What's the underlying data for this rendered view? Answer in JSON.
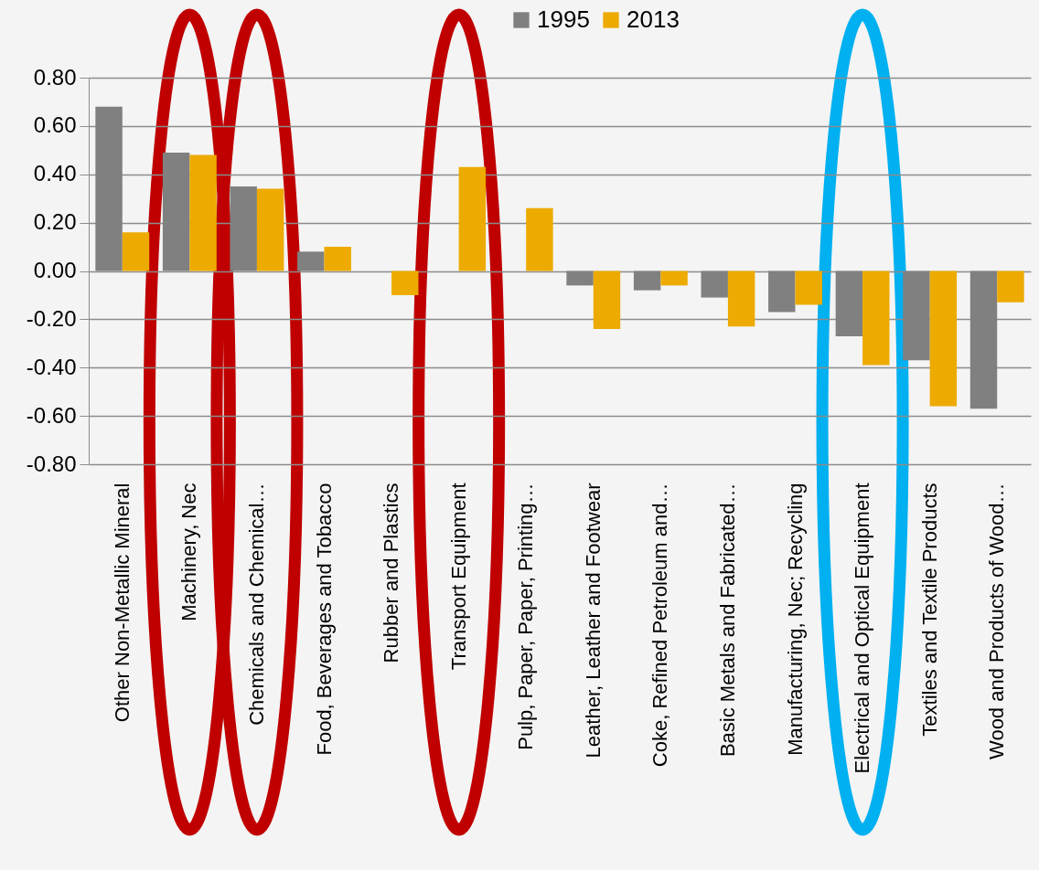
{
  "chart_data": {
    "type": "bar",
    "categories": [
      "Other Non-Metallic Mineral",
      "Machinery, Nec",
      "Chemicals and Chemical…",
      "Food, Beverages and Tobacco",
      "Rubber and Plastics",
      "Transport Equipment",
      "Pulp, Paper, Paper, Printing…",
      "Leather, Leather and Footwear",
      "Coke, Refined Petroleum and…",
      "Basic Metals and Fabricated…",
      "Manufacturing, Nec; Recycling",
      "Electrical and Optical Equipment",
      "Textiles and Textile Products",
      "Wood and Products of Wood…"
    ],
    "series": [
      {
        "name": "1995",
        "color": "#808080",
        "values": [
          0.68,
          0.49,
          0.35,
          0.08,
          0.0,
          0.0,
          0.0,
          -0.06,
          -0.08,
          -0.11,
          -0.17,
          -0.27,
          -0.37,
          -0.57
        ]
      },
      {
        "name": "2013",
        "color": "#edaa00",
        "values": [
          0.16,
          0.48,
          0.34,
          0.1,
          -0.1,
          0.43,
          0.26,
          -0.24,
          -0.06,
          -0.23,
          -0.14,
          -0.39,
          -0.56,
          -0.13
        ]
      }
    ],
    "ylim": [
      -0.8,
      0.8
    ],
    "yticks": [
      {
        "value": -0.8,
        "label": "-0.80"
      },
      {
        "value": -0.6,
        "label": "-0.60"
      },
      {
        "value": -0.4,
        "label": "-0.40"
      },
      {
        "value": -0.2,
        "label": "-0.20"
      },
      {
        "value": 0,
        "label": "0.00"
      },
      {
        "value": 0.2,
        "label": "0.20"
      },
      {
        "value": 0.4,
        "label": "0.40"
      },
      {
        "value": 0.6,
        "label": "0.60"
      },
      {
        "value": 0.8,
        "label": "0.80"
      }
    ],
    "grid": "y",
    "legend": "top"
  }
}
